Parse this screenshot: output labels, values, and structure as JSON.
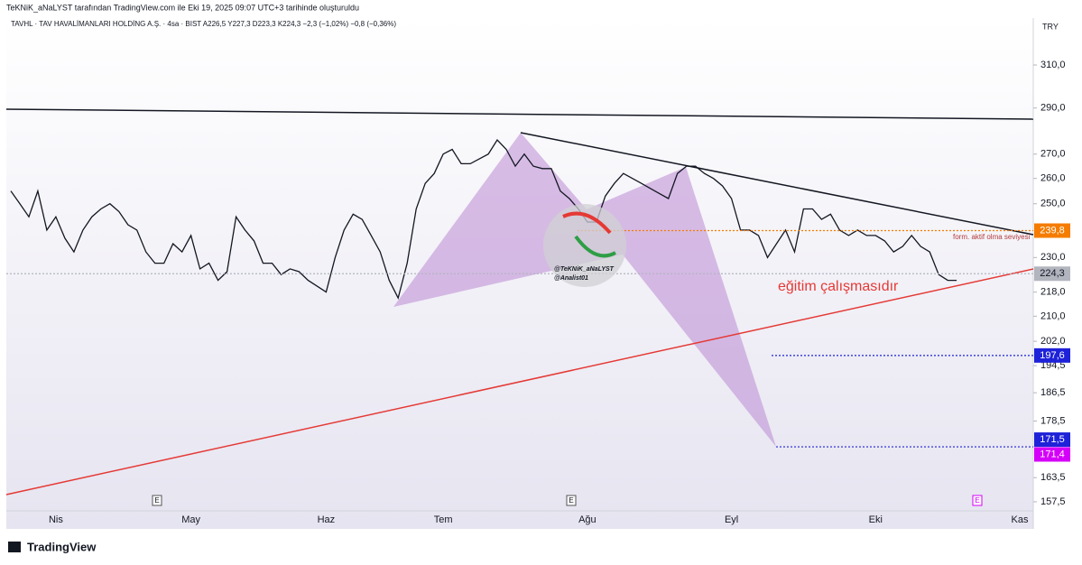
{
  "chart_data": {
    "type": "line",
    "subtitle": "TeKNiK_aNaLYST tarafından TradingView.com ile Eki 19, 2025 09:07 UTC+3 tarihinde oluşturuldu",
    "title": "TAVHL · TAV HAVALİMANLARI HOLDİNG A.Ş. · 4sa · BIST  A226,5  Y227,3  D223,3  K224,3  −2,3 (−1,02%)  −0,8 (−0,36%)",
    "currency": "TRY",
    "log_scale": true,
    "color": "#131722",
    "ylim": [
      155.3,
      333.4
    ],
    "yticks": [
      {
        "value": 310,
        "label": "310,0"
      },
      {
        "value": 290,
        "label": "290,0"
      },
      {
        "value": 270,
        "label": "270,0"
      },
      {
        "value": 260,
        "label": "260,0"
      },
      {
        "value": 250,
        "label": "250,0"
      },
      {
        "value": 230,
        "label": "230,0"
      },
      {
        "value": 218,
        "label": "218,0"
      },
      {
        "value": 210,
        "label": "210,0"
      },
      {
        "value": 202,
        "label": "202,0"
      },
      {
        "value": 194.5,
        "label": "194,5"
      },
      {
        "value": 186.5,
        "label": "186,5"
      },
      {
        "value": 178.5,
        "label": "178,5"
      },
      {
        "value": 163.5,
        "label": "163,5"
      },
      {
        "value": 157.5,
        "label": "157,5"
      }
    ],
    "categories": [
      null,
      null,
      null,
      null,
      null,
      "Nis",
      null,
      null,
      null,
      null,
      null,
      null,
      null,
      null,
      null,
      null,
      null,
      null,
      null,
      null,
      "May",
      null,
      null,
      null,
      null,
      null,
      null,
      null,
      null,
      null,
      null,
      null,
      null,
      null,
      null,
      "Haz",
      null,
      null,
      null,
      null,
      null,
      null,
      null,
      null,
      null,
      null,
      null,
      null,
      "Tem",
      null,
      null,
      null,
      null,
      null,
      null,
      null,
      null,
      null,
      null,
      null,
      null,
      null,
      null,
      null,
      "Ağu",
      null,
      null,
      null,
      null,
      null,
      null,
      null,
      null,
      null,
      null,
      null,
      null,
      null,
      null,
      null,
      "Eyl",
      null,
      null,
      null,
      null,
      null,
      null,
      null,
      null,
      null,
      null,
      null,
      null,
      null,
      null,
      null,
      "Eki",
      null,
      null,
      null,
      null,
      null,
      null,
      null,
      null,
      null,
      null,
      null,
      null,
      null,
      null,
      null,
      "Kas",
      null
    ],
    "values": [
      255,
      250,
      245,
      255,
      240,
      245,
      237,
      232,
      240,
      245,
      248,
      250,
      247,
      242,
      240,
      232,
      228,
      228,
      235,
      232,
      238,
      226,
      228,
      222,
      225,
      245,
      240,
      236,
      228,
      228,
      224,
      226,
      225,
      222,
      220,
      218,
      230,
      240,
      246,
      244,
      238,
      232,
      222,
      216,
      228,
      248,
      258,
      262,
      270,
      272,
      266,
      266,
      268,
      270,
      276,
      272,
      265,
      270,
      265,
      264,
      264,
      255,
      252,
      248,
      243,
      243,
      253,
      258,
      262,
      260,
      258,
      256,
      254,
      252,
      262,
      265,
      265,
      262,
      260,
      257,
      252,
      240,
      240,
      238,
      230,
      235,
      240,
      232,
      248,
      248,
      244,
      246,
      240,
      238,
      240,
      238,
      238,
      236,
      232,
      234,
      238,
      234,
      232,
      224,
      222,
      222,
      null,
      null,
      null,
      null,
      null,
      null,
      null,
      null
    ],
    "price_lines": [
      {
        "value": 239.8,
        "label": "239,8",
        "color": "#f57c00"
      },
      {
        "value": 224.3,
        "label": "224,3",
        "color": "#b2b5be"
      },
      {
        "value": 197.6,
        "label": "197,6",
        "color": "#1e22d8"
      },
      {
        "value": 171.5,
        "label": "171,5",
        "color": "#1e22d8"
      },
      {
        "value": 171.4,
        "label": "171,4",
        "color": "#d500f9"
      }
    ],
    "annotations": [
      "form. aktif olma seviyesi",
      "eğitim çalışmasıdır"
    ],
    "watermark": [
      "@TeKNiK_aNaLYST",
      "@Analist01"
    ],
    "event_markers": [
      "E",
      "E",
      "E"
    ],
    "brand": "TradingView"
  }
}
